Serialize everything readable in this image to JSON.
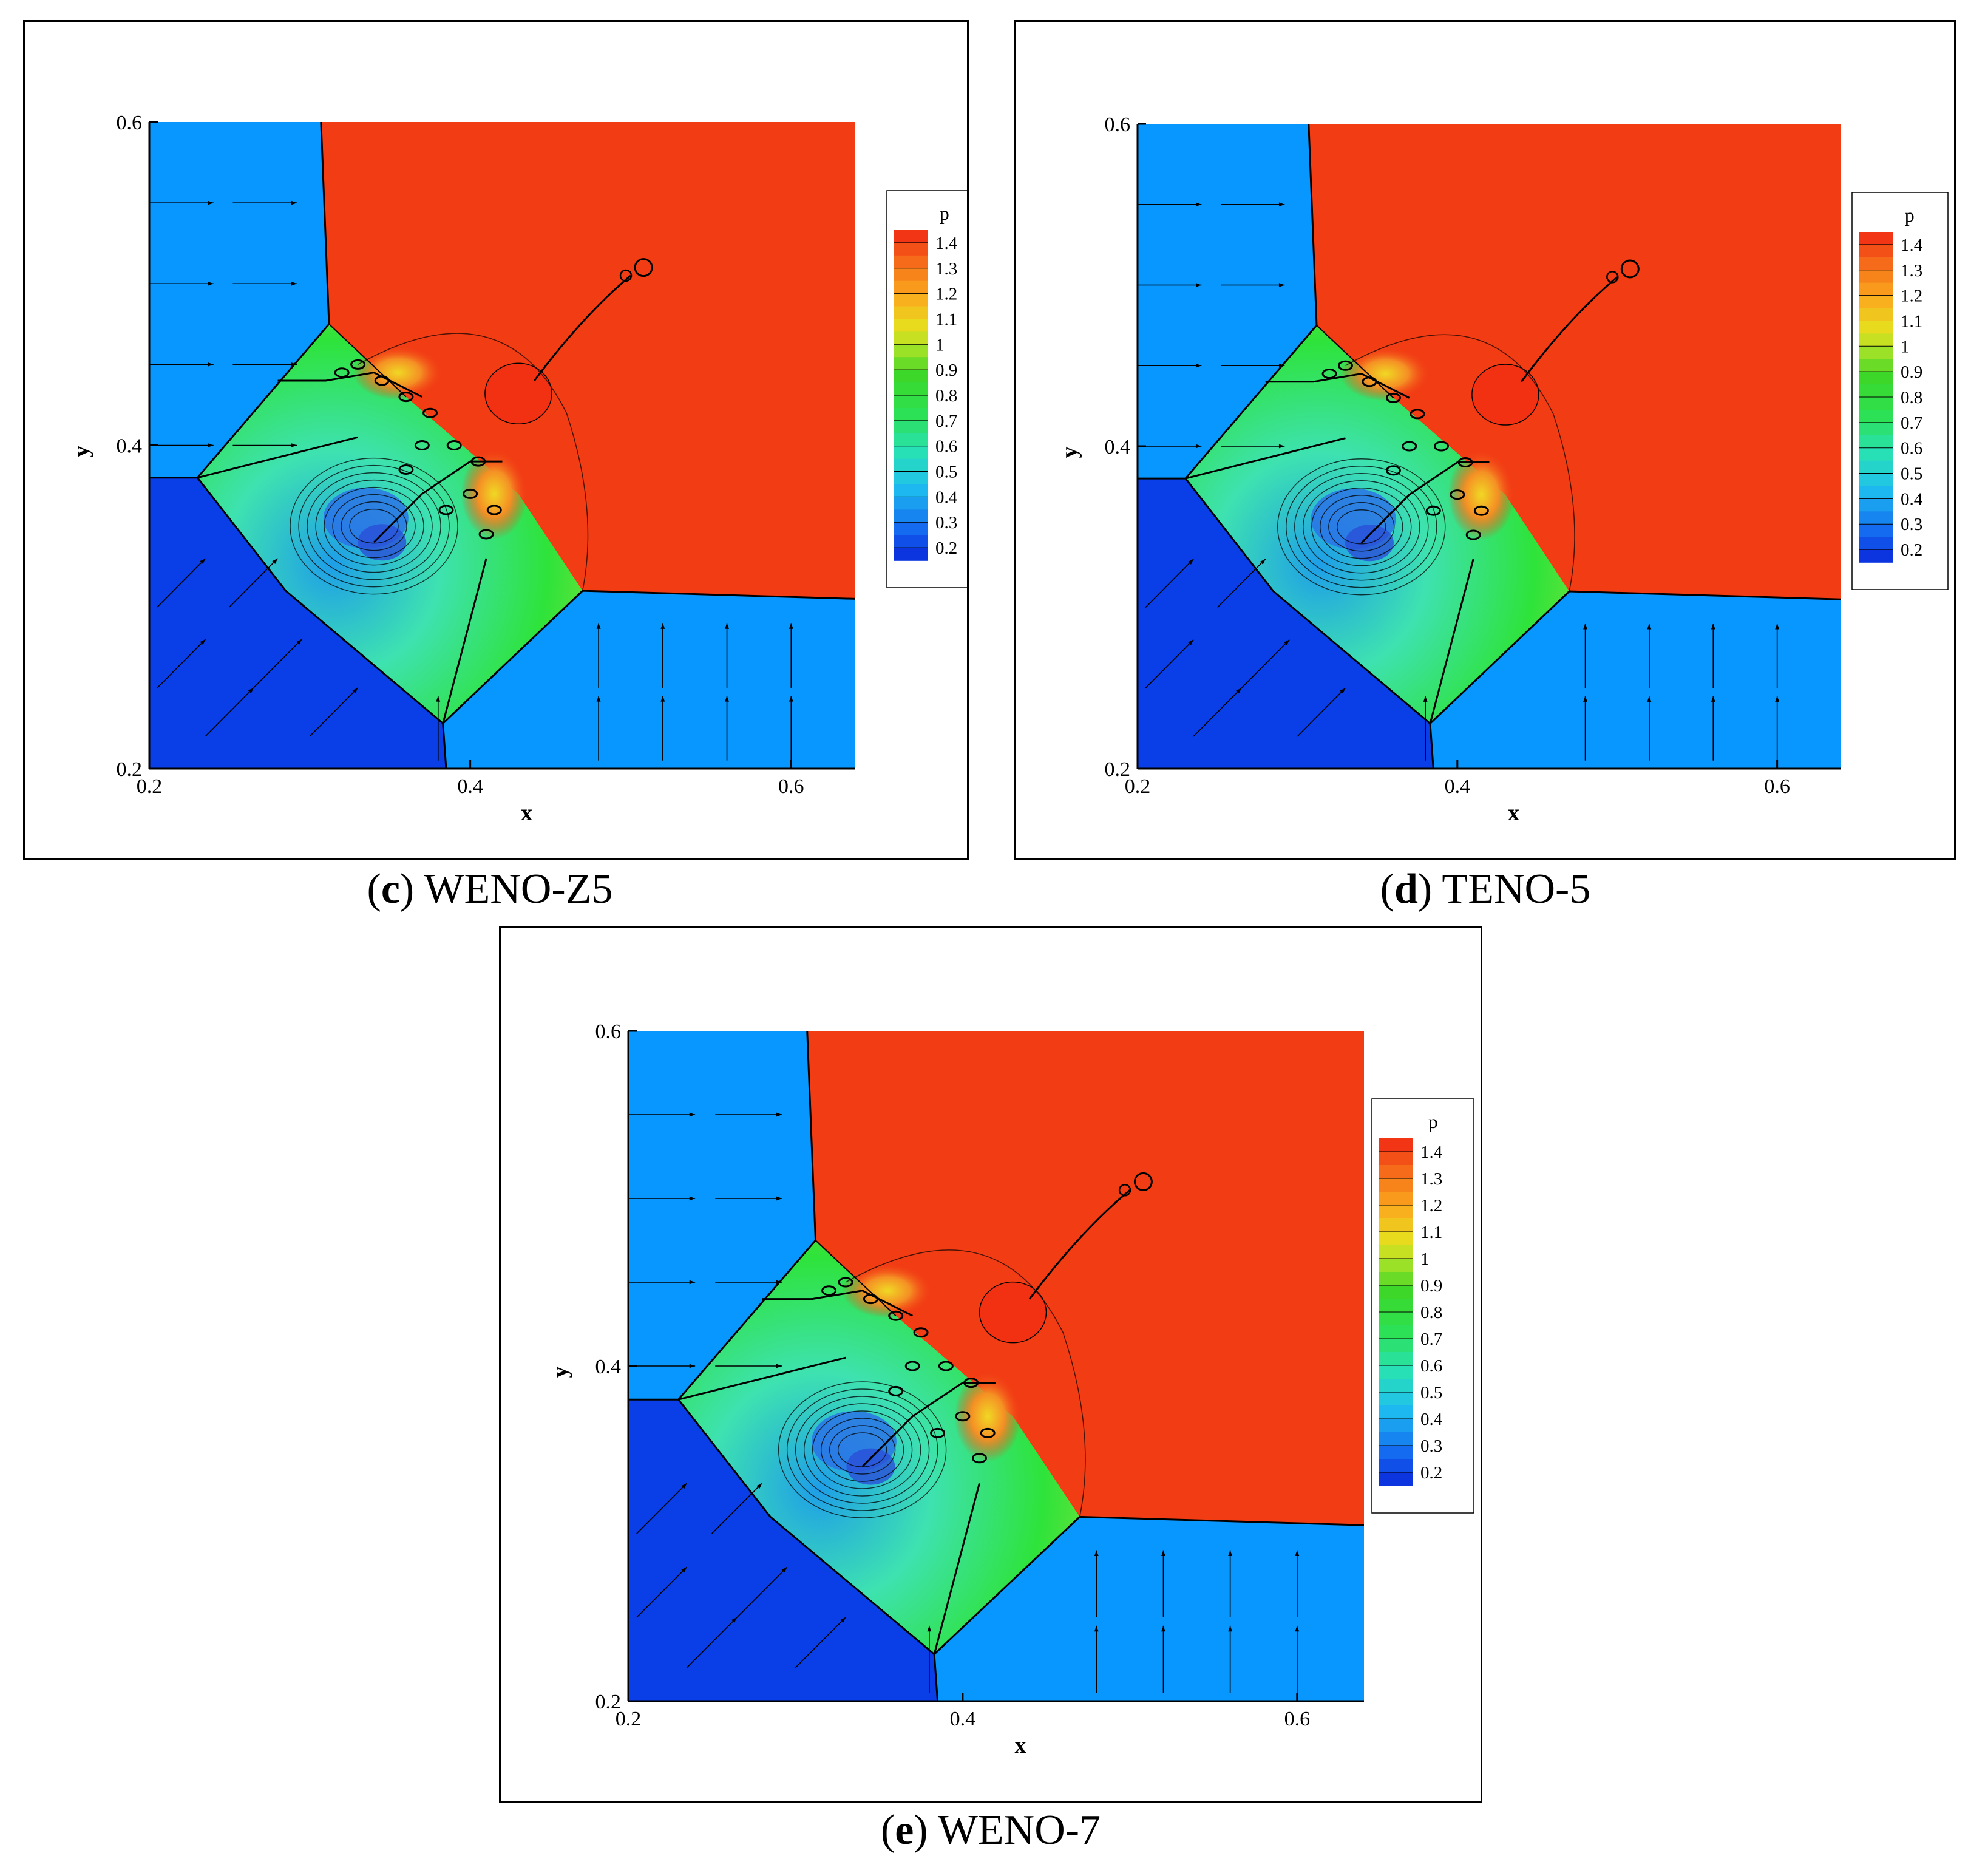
{
  "colors": {
    "blue_light": "#0896ff",
    "blue_dark": "#0a3ee6",
    "red": "#f23c14",
    "green": "#2ee33a"
  },
  "colorbar": {
    "label": "p",
    "ticks": [
      "1.4",
      "1.3",
      "1.2",
      "1.1",
      "1",
      "0.9",
      "0.8",
      "0.7",
      "0.6",
      "0.5",
      "0.4",
      "0.3",
      "0.2"
    ]
  },
  "chart_data": [
    {
      "type": "heatmap",
      "panel": "c",
      "caption_letter": "c",
      "caption_text": "WENO-Z5",
      "xlabel": "x",
      "ylabel": "y",
      "xlim": [
        0.2,
        0.64
      ],
      "ylim": [
        0.2,
        0.6
      ],
      "xticks": [
        "0.2",
        "0.4",
        "0.6"
      ],
      "yticks": [
        "0.2",
        "0.4",
        "0.6"
      ],
      "colorbar_label": "p",
      "colorbar_range": [
        0.15,
        1.45
      ]
    },
    {
      "type": "heatmap",
      "panel": "d",
      "caption_letter": "d",
      "caption_text": "TENO-5",
      "xlabel": "x",
      "ylabel": "y",
      "xlim": [
        0.2,
        0.64
      ],
      "ylim": [
        0.2,
        0.6
      ],
      "xticks": [
        "0.2",
        "0.4",
        "0.6"
      ],
      "yticks": [
        "0.2",
        "0.4",
        "0.6"
      ],
      "colorbar_label": "p",
      "colorbar_range": [
        0.15,
        1.45
      ]
    },
    {
      "type": "heatmap",
      "panel": "e",
      "caption_letter": "e",
      "caption_text": "WENO-7",
      "xlabel": "x",
      "ylabel": "y",
      "xlim": [
        0.2,
        0.64
      ],
      "ylim": [
        0.2,
        0.6
      ],
      "xticks": [
        "0.2",
        "0.4",
        "0.6"
      ],
      "yticks": [
        "0.2",
        "0.4",
        "0.6"
      ],
      "colorbar_label": "p",
      "colorbar_range": [
        0.15,
        1.45
      ]
    }
  ]
}
